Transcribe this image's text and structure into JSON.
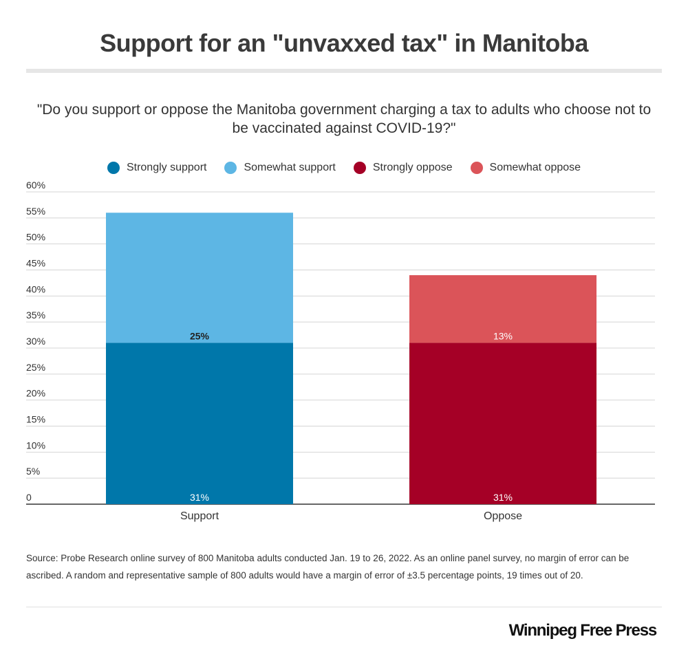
{
  "header": {
    "title": "Support for an \"unvaxxed tax\" in Manitoba",
    "subtitle": "\"Do you support or oppose the Manitoba government charging a tax to adults who choose not to be vaccinated against COVID-19?\""
  },
  "chart_data": {
    "type": "bar",
    "stacked": true,
    "categories": [
      "Support",
      "Oppose"
    ],
    "series": [
      {
        "name": "Strongly support",
        "color": "#0077aa",
        "values": [
          31,
          0
        ],
        "labels": [
          "31%",
          ""
        ]
      },
      {
        "name": "Somewhat support",
        "color": "#5db6e4",
        "values": [
          25,
          0
        ],
        "labels": [
          "25%",
          ""
        ]
      },
      {
        "name": "Strongly oppose",
        "color": "#a50026",
        "values": [
          0,
          31
        ],
        "labels": [
          "",
          "31%"
        ]
      },
      {
        "name": "Somewhat oppose",
        "color": "#db5459",
        "values": [
          0,
          13
        ],
        "labels": [
          "",
          "13%"
        ]
      }
    ],
    "ylim": [
      0,
      60
    ],
    "yticks": [
      0,
      5,
      10,
      15,
      20,
      25,
      30,
      35,
      40,
      45,
      50,
      55,
      60
    ],
    "ytick_labels": [
      "0",
      "5%",
      "10%",
      "15%",
      "20%",
      "25%",
      "30%",
      "35%",
      "40%",
      "45%",
      "50%",
      "55%",
      "60%"
    ],
    "grid": true,
    "legend_position": "top-center",
    "xlabel": "",
    "ylabel": ""
  },
  "footer": {
    "source": "Source: Probe Research online survey of 800 Manitoba adults conducted Jan. 19 to 26, 2022. As an online panel survey, no margin of error can be ascribed. A random and representative sample of 800 adults would have a margin of error of ±3.5 percentage points, 19 times out of 20.",
    "logo": "Winnipeg Free Press"
  }
}
